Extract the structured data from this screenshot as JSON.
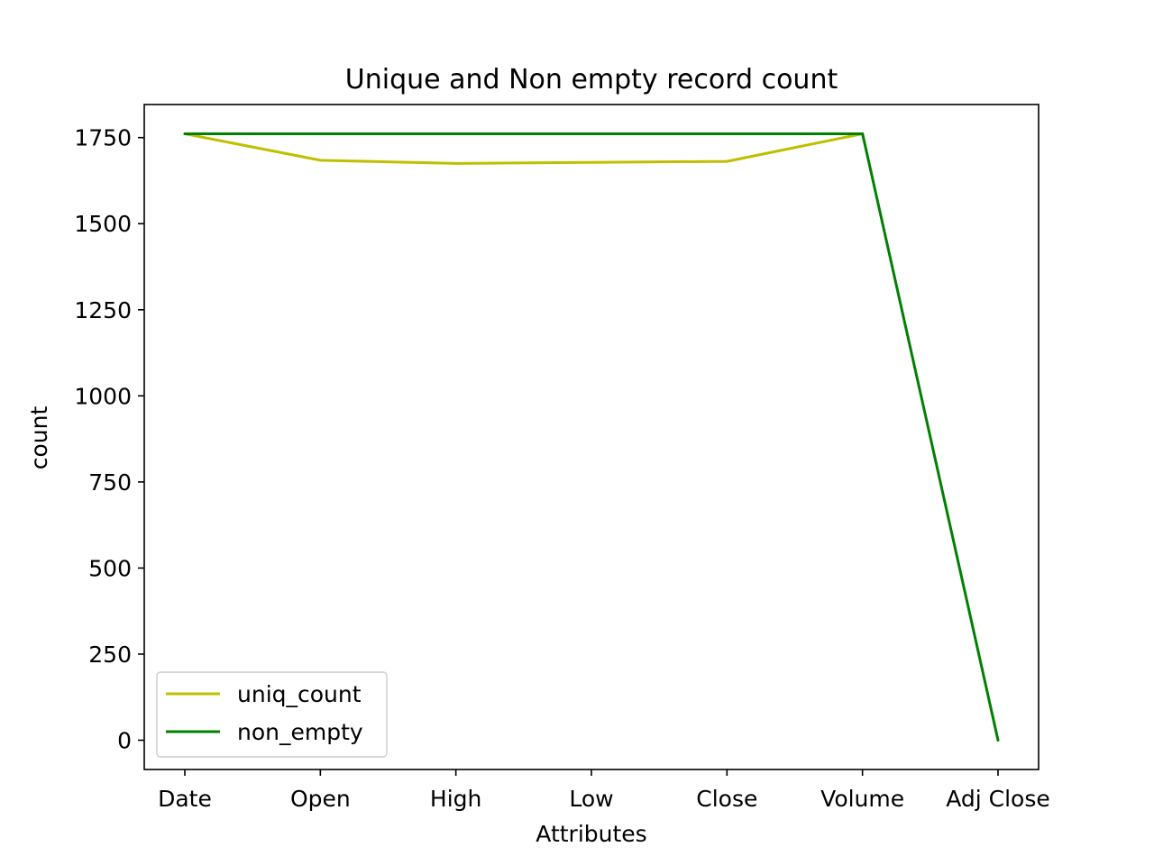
{
  "chart_data": {
    "type": "line",
    "title": "Unique and Non empty record count",
    "xlabel": "Attributes",
    "ylabel": "count",
    "categories": [
      "Date",
      "Open",
      "High",
      "Low",
      "Close",
      "Volume",
      "Adj Close"
    ],
    "ylim": [
      -85,
      1846
    ],
    "yticks": [
      0,
      250,
      500,
      750,
      1000,
      1250,
      1500,
      1750
    ],
    "grid": false,
    "legend_position": "lower-left",
    "series": [
      {
        "name": "uniq_count",
        "color": "#bfbf00",
        "values": [
          1761,
          1684,
          1675,
          null,
          1681,
          1761,
          null
        ]
      },
      {
        "name": "non_empty",
        "color": "#008000",
        "values": [
          1761,
          1761,
          1761,
          null,
          1761,
          1761,
          0
        ]
      }
    ]
  }
}
